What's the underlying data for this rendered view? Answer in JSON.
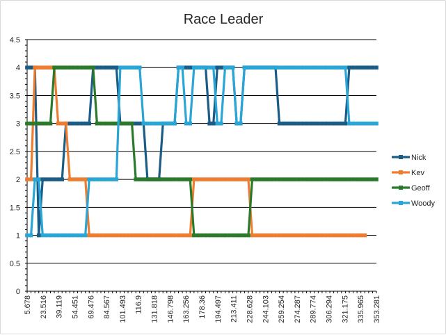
{
  "chart_data": {
    "type": "line",
    "title": "Race Leader",
    "xlabel": "",
    "ylabel": "",
    "ylim": [
      0,
      4.5
    ],
    "yticks": [
      "0",
      "0.5",
      "1",
      "1.5",
      "2",
      "2.5",
      "3",
      "3.5",
      "4",
      "4.5"
    ],
    "xtick_labels": [
      "5.678",
      "23.516",
      "39.119",
      "54.451",
      "69.476",
      "84.567",
      "101.493",
      "116.9",
      "131.818",
      "146.798",
      "163.256",
      "178.36",
      "194.497",
      "213.411",
      "228.628",
      "244.103",
      "259.254",
      "274.287",
      "289.774",
      "306.294",
      "321.175",
      "335.965",
      "353.281"
    ],
    "grid": "horizontal",
    "legend_position": "right",
    "num_points": 91,
    "series": [
      {
        "name": "Nick",
        "color": "#1b5c86",
        "segments": [
          [
            0,
            2,
            4
          ],
          [
            3,
            3,
            1
          ],
          [
            4,
            6,
            2
          ],
          [
            7,
            9,
            2
          ],
          [
            10,
            13,
            3
          ],
          [
            14,
            16,
            3
          ],
          [
            17,
            23,
            4
          ],
          [
            24,
            30,
            3
          ],
          [
            31,
            34,
            2
          ],
          [
            35,
            38,
            3
          ],
          [
            39,
            46,
            4
          ],
          [
            47,
            48,
            3
          ],
          [
            49,
            53,
            4
          ],
          [
            54,
            55,
            3
          ],
          [
            56,
            57,
            4
          ],
          [
            58,
            64,
            4
          ],
          [
            65,
            82,
            3
          ],
          [
            83,
            90,
            4
          ]
        ]
      },
      {
        "name": "Kev",
        "color": "#ed7d31",
        "segments": [
          [
            0,
            1,
            2
          ],
          [
            2,
            7,
            4
          ],
          [
            8,
            10,
            3
          ],
          [
            11,
            15,
            2
          ],
          [
            16,
            42,
            1
          ],
          [
            43,
            57,
            2
          ],
          [
            58,
            87,
            1
          ]
        ]
      },
      {
        "name": "Geoff",
        "color": "#2b7a2b",
        "segments": [
          [
            0,
            6,
            3
          ],
          [
            7,
            17,
            4
          ],
          [
            18,
            27,
            3
          ],
          [
            28,
            42,
            2
          ],
          [
            43,
            57,
            1
          ],
          [
            58,
            90,
            2
          ]
        ]
      },
      {
        "name": "Woody",
        "color": "#29a5d6",
        "segments": [
          [
            0,
            1,
            1
          ],
          [
            2,
            3,
            2
          ],
          [
            4,
            15,
            1
          ],
          [
            16,
            23,
            2
          ],
          [
            24,
            29,
            4
          ],
          [
            30,
            38,
            3
          ],
          [
            39,
            40,
            4
          ],
          [
            41,
            42,
            3
          ],
          [
            43,
            44,
            4
          ],
          [
            45,
            48,
            4
          ],
          [
            49,
            50,
            3
          ],
          [
            51,
            53,
            4
          ],
          [
            54,
            55,
            3
          ],
          [
            56,
            82,
            4
          ],
          [
            83,
            90,
            3
          ]
        ]
      }
    ]
  }
}
